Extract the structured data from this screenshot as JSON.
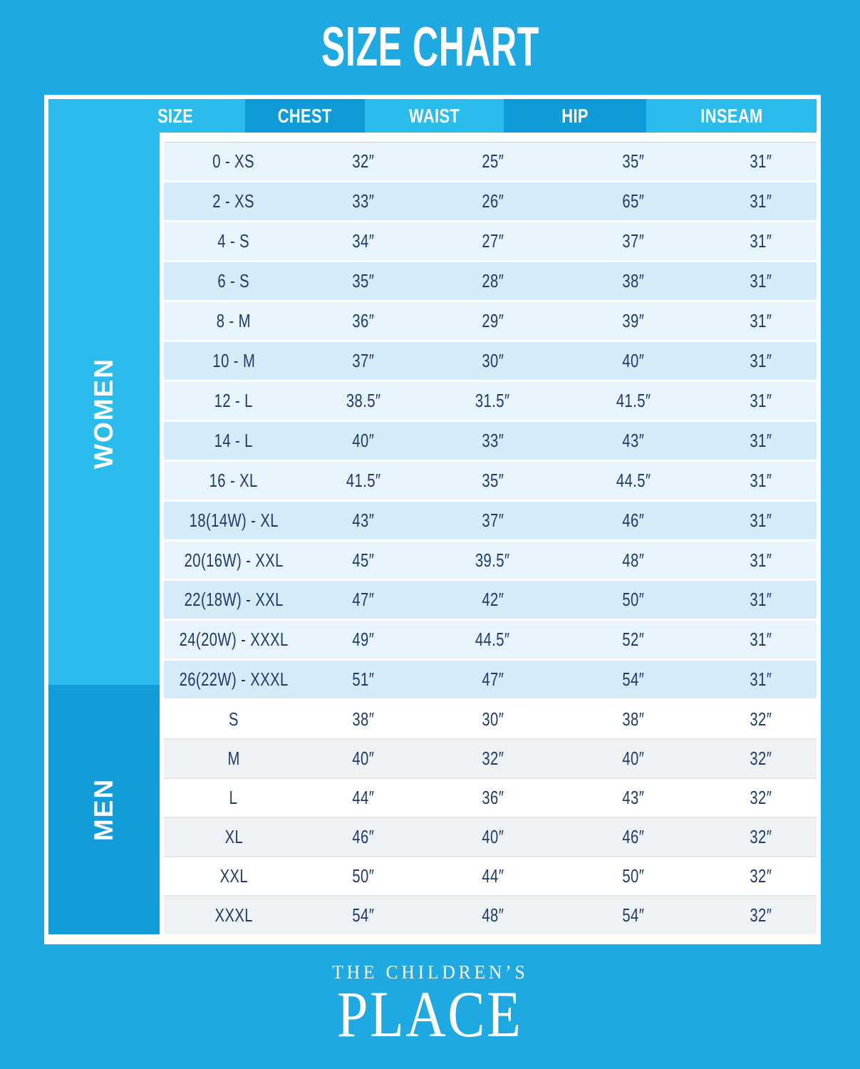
{
  "title": "SIZE CHART",
  "chart_data": {
    "type": "table",
    "columns": [
      "SIZE",
      "CHEST",
      "WAIST",
      "HIP",
      "INSEAM"
    ],
    "sections": [
      {
        "label": "WOMEN",
        "rows": [
          [
            "0 - XS",
            "32″",
            "25″",
            "35″",
            "31″"
          ],
          [
            "2 - XS",
            "33″",
            "26″",
            "65″",
            "31″"
          ],
          [
            "4 - S",
            "34″",
            "27″",
            "37″",
            "31″"
          ],
          [
            "6 - S",
            "35″",
            "28″",
            "38″",
            "31″"
          ],
          [
            "8 - M",
            "36″",
            "29″",
            "39″",
            "31″"
          ],
          [
            "10 - M",
            "37″",
            "30″",
            "40″",
            "31″"
          ],
          [
            "12 - L",
            "38.5″",
            "31.5″",
            "41.5″",
            "31″"
          ],
          [
            "14 - L",
            "40″",
            "33″",
            "43″",
            "31″"
          ],
          [
            "16 - XL",
            "41.5″",
            "35″",
            "44.5″",
            "31″"
          ],
          [
            "18(14W) - XL",
            "43″",
            "37″",
            "46″",
            "31″"
          ],
          [
            "20(16W) - XXL",
            "45″",
            "39.5″",
            "48″",
            "31″"
          ],
          [
            "22(18W) - XXL",
            "47″",
            "42″",
            "50″",
            "31″"
          ],
          [
            "24(20W) - XXXL",
            "49″",
            "44.5″",
            "52″",
            "31″"
          ],
          [
            "26(22W) - XXXL",
            "51″",
            "47″",
            "54″",
            "31″"
          ]
        ]
      },
      {
        "label": "MEN",
        "rows": [
          [
            "S",
            "38″",
            "30″",
            "38″",
            "32″"
          ],
          [
            "M",
            "40″",
            "32″",
            "40″",
            "32″"
          ],
          [
            "L",
            "44″",
            "36″",
            "43″",
            "32″"
          ],
          [
            "XL",
            "46″",
            "40″",
            "46″",
            "32″"
          ],
          [
            "XXL",
            "50″",
            "44″",
            "50″",
            "32″"
          ],
          [
            "XXXL",
            "54″",
            "48″",
            "54″",
            "32″"
          ]
        ]
      }
    ]
  },
  "footer": {
    "line1": "THE CHILDREN’S",
    "line2": "PLACE"
  },
  "colors": {
    "background": "#1FA9E3",
    "header_band": "#2BBCEE",
    "header_dark": "#0F9BD8",
    "sidebar_women": "#2BBCEE",
    "sidebar_men": "#129CD9",
    "row_women_light": "#E7F4FB",
    "row_women_shaded": "#D5ECF8",
    "row_men_white": "#FFFFFF",
    "row_men_gray": "#EEF2F5",
    "text_navy": "#1E3A6E"
  }
}
